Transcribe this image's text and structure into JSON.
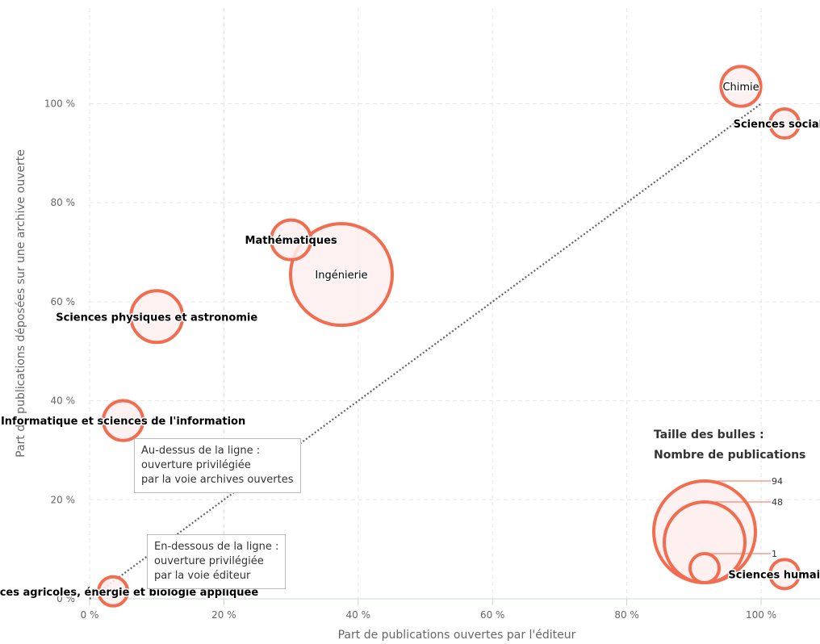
{
  "chart_data": {
    "type": "scatter",
    "xlabel": "Part de publications ouvertes par l'éditeur",
    "ylabel": "Part de publications déposées sur une archive ouverte",
    "xlim": [
      0,
      109
    ],
    "ylim": [
      0,
      115
    ],
    "x_ticks": [
      {
        "value": 0,
        "label": "0 %"
      },
      {
        "value": 20,
        "label": "20 %"
      },
      {
        "value": 40,
        "label": "40 %"
      },
      {
        "value": 60,
        "label": "60 %"
      },
      {
        "value": 80,
        "label": "80 %"
      },
      {
        "value": 100,
        "label": "100 %"
      }
    ],
    "y_ticks": [
      {
        "value": 0,
        "label": "0 %"
      },
      {
        "value": 20,
        "label": "20 %"
      },
      {
        "value": 40,
        "label": "40 %"
      },
      {
        "value": 60,
        "label": "60 %"
      },
      {
        "value": 80,
        "label": "80 %"
      },
      {
        "value": 100,
        "label": "100 %"
      }
    ],
    "grid": true,
    "diagonal_line": {
      "from": [
        0,
        0
      ],
      "to": [
        100,
        100
      ],
      "style": "dotted"
    },
    "points": [
      {
        "name": "Chimie",
        "x": 97,
        "y": 103.5,
        "z": 3,
        "bold": false
      },
      {
        "name": "Sciences sociales",
        "x": 103.5,
        "y": 96,
        "z": 1,
        "bold": true
      },
      {
        "name": "Mathématiques",
        "x": 30,
        "y": 72.5,
        "z": 3,
        "bold": true
      },
      {
        "name": "Ingénierie",
        "x": 37.5,
        "y": 65.5,
        "z": 94,
        "bold": false
      },
      {
        "name": "Sciences physiques et astronomie",
        "x": 10,
        "y": 57,
        "z": 10,
        "bold": true
      },
      {
        "name": "Informatique et sciences de l'information",
        "x": 5,
        "y": 36,
        "z": 3,
        "bold": true
      },
      {
        "name": "Sciences agricoles, énergie et biologie appliquée",
        "x": 3.5,
        "y": 1.5,
        "z": 1,
        "bold": true
      },
      {
        "name": "Sciences humaines",
        "x": 103.5,
        "y": 5,
        "z": 1,
        "bold": true
      }
    ],
    "bubble_legend": {
      "title_line1": "Taille des bulles :",
      "title_line2": "Nombre de publications",
      "values": [
        {
          "value": "94",
          "z": 94
        },
        {
          "value": "48",
          "z": 48
        },
        {
          "value": "1",
          "z": 1
        }
      ]
    },
    "colors": {
      "bubble_stroke": "#f26d50",
      "bubble_fill": "#fdf0ee",
      "diagonal": "#666666",
      "grid": "#e6e6e6"
    }
  },
  "annotations": {
    "above": {
      "line1": "Au-dessus de la ligne :",
      "line2": "ouverture privilégiée",
      "line3": "par la voie archives ouvertes"
    },
    "below": {
      "line1": "En-dessous de la ligne :",
      "line2": "ouverture privilégiée",
      "line3": "par la voie éditeur"
    }
  }
}
